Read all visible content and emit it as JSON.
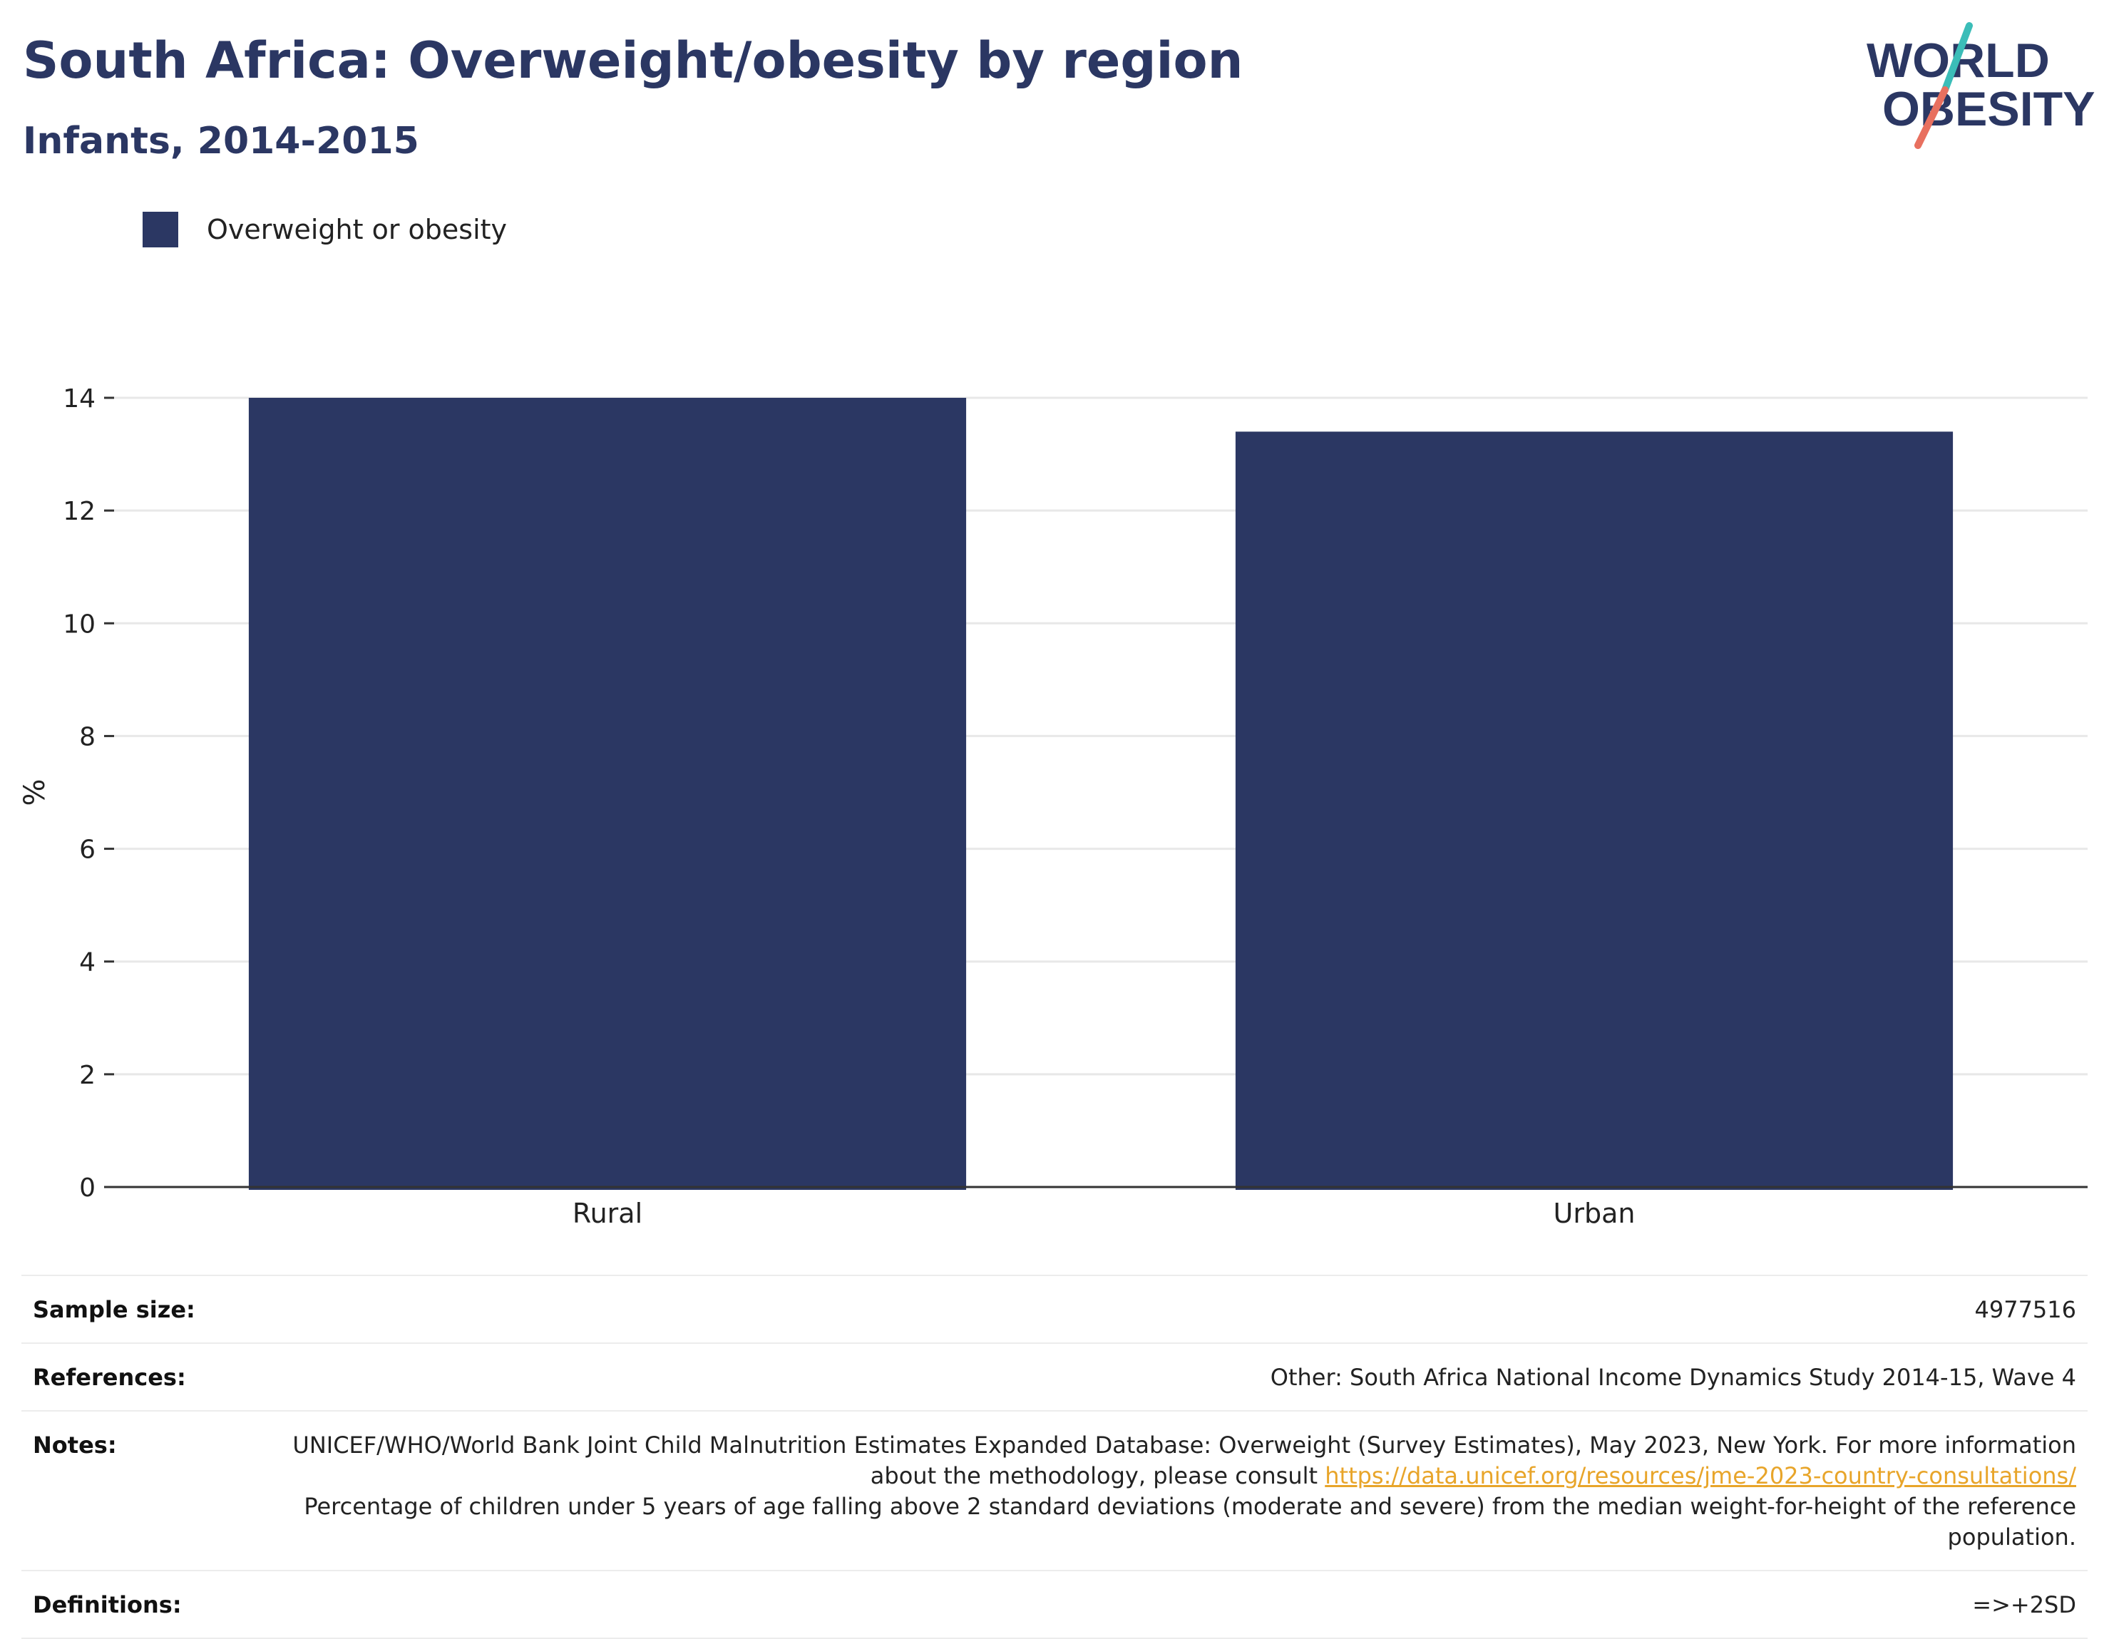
{
  "header": {
    "title": "South Africa: Overweight/obesity by region",
    "subtitle": "Infants, 2014-2015"
  },
  "logo": {
    "line1": "WORLD",
    "line2": "OBESITY",
    "accent_teal": "#3bbdb8",
    "accent_coral": "#e8705f",
    "text_color": "#2b3763"
  },
  "legend": {
    "label": "Overweight or obesity",
    "color": "#2b3763"
  },
  "chart_data": {
    "type": "bar",
    "categories": [
      "Rural",
      "Urban"
    ],
    "series": [
      {
        "name": "Overweight or obesity",
        "values": [
          14.0,
          13.4
        ],
        "color": "#2b3763"
      }
    ],
    "ylabel": "%",
    "ylim": [
      0,
      14
    ],
    "yticks": [
      0,
      2,
      4,
      6,
      8,
      10,
      12,
      14
    ],
    "grid": true,
    "legend_position": "top-left"
  },
  "info": {
    "sample_size_label": "Sample size:",
    "sample_size_value": "4977516",
    "references_label": "References:",
    "references_value": "Other: South Africa National Income Dynamics Study 2014-15, Wave 4",
    "notes_label": "Notes:",
    "notes_text1": "UNICEF/WHO/World Bank Joint Child Malnutrition Estimates Expanded Database: Overweight (Survey Estimates), May 2023, New York. For more information about the methodology, please consult ",
    "notes_link": "https://data.unicef.org/resources/jme-2023-country-consultations/",
    "notes_text2": "Percentage of children under 5 years of age falling above 2 standard deviations (moderate and severe) from the median weight-for-height of the reference population.",
    "definitions_label": "Definitions:",
    "definitions_value": "=>+2SD"
  }
}
